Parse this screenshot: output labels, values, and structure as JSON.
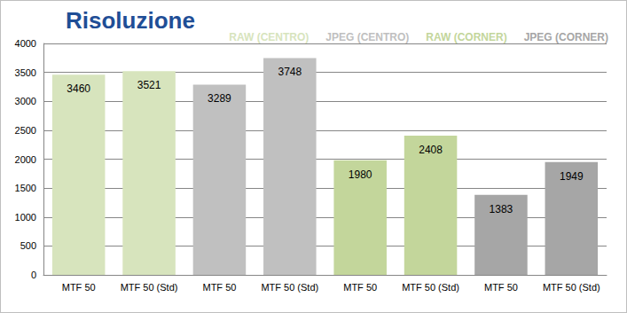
{
  "chart_data": {
    "type": "bar",
    "title": "Risoluzione",
    "categories": [
      "MTF 50",
      "MTF 50 (Std)",
      "MTF 50",
      "MTF 50 (Std)",
      "MTF 50",
      "MTF 50 (Std)",
      "MTF 50",
      "MTF 50 (Std)"
    ],
    "series": [
      {
        "name": "RAW (CENTRO)",
        "color": "#d7e4bd",
        "values": [
          3460,
          3521,
          null,
          null,
          null,
          null,
          null,
          null
        ]
      },
      {
        "name": "JPEG (CENTRO)",
        "color": "#c0c0c0",
        "values": [
          null,
          null,
          3289,
          3748,
          null,
          null,
          null,
          null
        ]
      },
      {
        "name": "RAW (CORNER)",
        "color": "#c3d69b",
        "values": [
          null,
          null,
          null,
          null,
          1980,
          2408,
          null,
          null
        ]
      },
      {
        "name": "JPEG (CORNER)",
        "color": "#a6a6a6",
        "values": [
          null,
          null,
          null,
          null,
          null,
          null,
          1383,
          1949
        ]
      }
    ],
    "ylim": [
      0,
      4000
    ],
    "yticks": [
      0,
      500,
      1000,
      1500,
      2000,
      2500,
      3000,
      3500,
      4000
    ],
    "grid": true,
    "data_labels": true,
    "legend": "top-right"
  }
}
